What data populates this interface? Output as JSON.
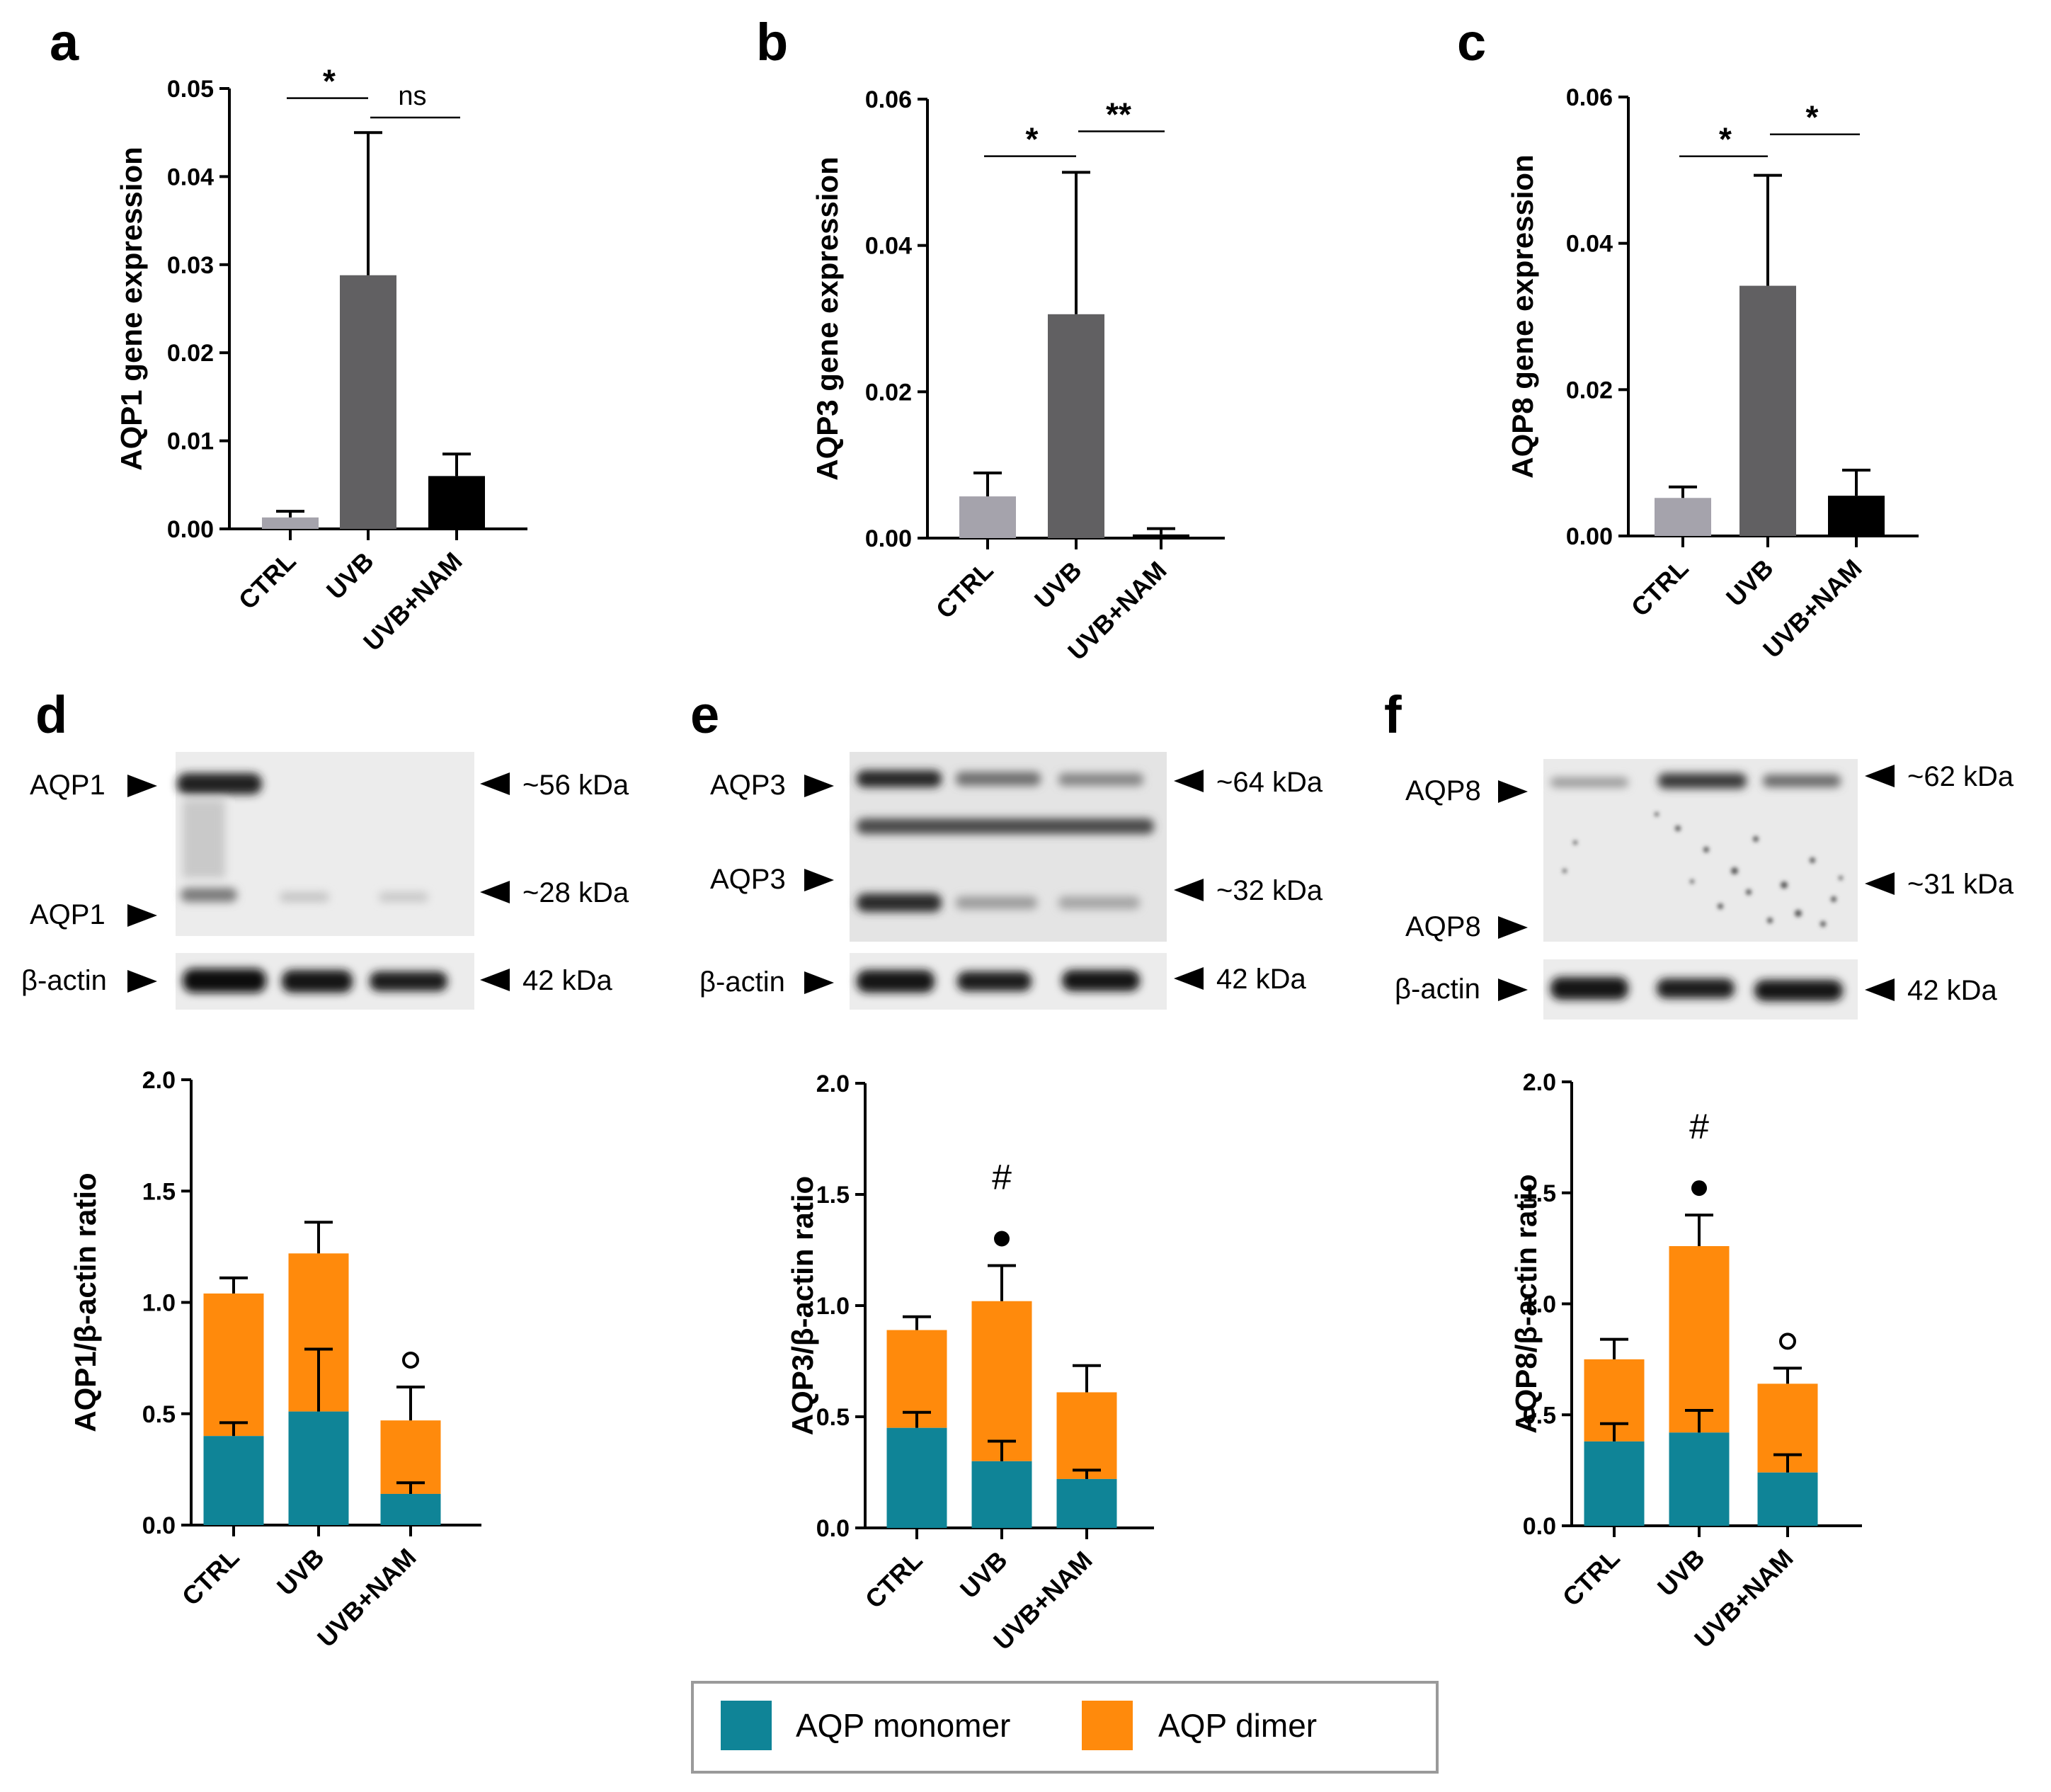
{
  "colors": {
    "ctrl_bar": "#a5a3ac",
    "uvb_bar": "#616062",
    "nam_bar": "#000000",
    "monomer": "#0f8497",
    "dimer": "#ff8a0c",
    "legend_border": "#9a9a9a"
  },
  "panels": {
    "a": {
      "letter": "a"
    },
    "b": {
      "letter": "b"
    },
    "c": {
      "letter": "c"
    },
    "d": {
      "letter": "d"
    },
    "e": {
      "letter": "e"
    },
    "f": {
      "letter": "f"
    }
  },
  "blots": {
    "d": {
      "band_labels": [
        "AQP1",
        "AQP1",
        "β-actin"
      ],
      "size_labels": [
        "~56 kDa",
        "~28 kDa",
        "42 kDa"
      ]
    },
    "e": {
      "band_labels": [
        "AQP3",
        "AQP3",
        "β-actin"
      ],
      "size_labels": [
        "~64 kDa",
        "~32 kDa",
        "42 kDa"
      ]
    },
    "f": {
      "band_labels": [
        "AQP8",
        "AQP8",
        "β-actin"
      ],
      "size_labels": [
        "~62 kDa",
        "~31 kDa",
        "42 kDa"
      ]
    }
  },
  "legend": {
    "monomer_label": "AQP monomer",
    "dimer_label": "AQP dimer"
  },
  "chart_data": [
    {
      "id": "a",
      "type": "bar",
      "categories": [
        "CTRL",
        "UVB",
        "UVB+NAM"
      ],
      "values": [
        0.0013,
        0.0288,
        0.006
      ],
      "errors": [
        0.0007,
        0.0162,
        0.0025
      ],
      "ylabel": "AQP1 gene expression",
      "ylim": [
        0,
        0.05
      ],
      "yticks": [
        "0.00",
        "0.01",
        "0.02",
        "0.03",
        "0.04",
        "0.05"
      ],
      "significance": [
        {
          "from": 0,
          "to": 1,
          "label": "*",
          "y": 0.0489
        },
        {
          "from": 1,
          "to": 2,
          "label": "ns",
          "y": 0.0467
        }
      ]
    },
    {
      "id": "b",
      "type": "bar",
      "categories": [
        "CTRL",
        "UVB",
        "UVB+NAM"
      ],
      "values": [
        0.0057,
        0.0306,
        0.0005
      ],
      "errors": [
        0.0032,
        0.0194,
        0.0008
      ],
      "ylabel": "AQP3 gene expression",
      "ylim": [
        0,
        0.06
      ],
      "yticks": [
        "0.00",
        "0.02",
        "0.04",
        "0.06"
      ],
      "significance": [
        {
          "from": 0,
          "to": 1,
          "label": "*",
          "y": 0.0522
        },
        {
          "from": 1,
          "to": 2,
          "label": "**",
          "y": 0.0556
        }
      ]
    },
    {
      "id": "c",
      "type": "bar",
      "categories": [
        "CTRL",
        "UVB",
        "UVB+NAM"
      ],
      "values": [
        0.0052,
        0.0342,
        0.0055
      ],
      "errors": [
        0.0015,
        0.0151,
        0.0035
      ],
      "ylabel": "AQP8 gene expression",
      "ylim": [
        0,
        0.06
      ],
      "yticks": [
        "0.00",
        "0.02",
        "0.04",
        "0.06"
      ],
      "significance": [
        {
          "from": 0,
          "to": 1,
          "label": "*",
          "y": 0.0519
        },
        {
          "from": 1,
          "to": 2,
          "label": "*",
          "y": 0.0549
        }
      ]
    },
    {
      "id": "d",
      "type": "stacked-bar",
      "categories": [
        "CTRL",
        "UVB",
        "UVB+NAM"
      ],
      "ylabel": "AQP1/β-actin ratio",
      "ylim": [
        0,
        2.0
      ],
      "yticks": [
        "0.0",
        "0.5",
        "1.0",
        "1.5",
        "2.0"
      ],
      "series": [
        {
          "name": "AQP monomer",
          "values": [
            0.4,
            0.51,
            0.14
          ],
          "errors": [
            0.06,
            0.28,
            0.05
          ]
        },
        {
          "name": "AQP dimer",
          "values": [
            0.64,
            0.71,
            0.33
          ],
          "errors": [
            0.07,
            0.14,
            0.15
          ]
        }
      ],
      "marks": [
        {
          "index": 2,
          "text": "°"
        }
      ]
    },
    {
      "id": "e",
      "type": "stacked-bar",
      "categories": [
        "CTRL",
        "UVB",
        "UVB+NAM"
      ],
      "ylabel": "AQP3/β-actin ratio",
      "ylim": [
        0,
        2.0
      ],
      "yticks": [
        "0.0",
        "0.5",
        "1.0",
        "1.5",
        "2.0"
      ],
      "series": [
        {
          "name": "AQP monomer",
          "values": [
            0.45,
            0.3,
            0.22
          ],
          "errors": [
            0.07,
            0.09,
            0.04
          ]
        },
        {
          "name": "AQP dimer",
          "values": [
            0.44,
            0.72,
            0.39
          ],
          "errors": [
            0.06,
            0.16,
            0.12
          ]
        }
      ],
      "marks": [
        {
          "index": 1,
          "text": "#"
        },
        {
          "index": 1,
          "text": "•"
        }
      ]
    },
    {
      "id": "f",
      "type": "stacked-bar",
      "categories": [
        "CTRL",
        "UVB",
        "UVB+NAM"
      ],
      "ylabel": "AQP8/β-actin ratio",
      "ylim": [
        0,
        2.0
      ],
      "yticks": [
        "0.0",
        "0.5",
        "1.0",
        "1.5",
        "2.0"
      ],
      "series": [
        {
          "name": "AQP monomer",
          "values": [
            0.38,
            0.42,
            0.24
          ],
          "errors": [
            0.08,
            0.1,
            0.08
          ]
        },
        {
          "name": "AQP dimer",
          "values": [
            0.37,
            0.84,
            0.4
          ],
          "errors": [
            0.09,
            0.14,
            0.07
          ]
        }
      ],
      "marks": [
        {
          "index": 2,
          "text": "°"
        },
        {
          "index": 1,
          "text": "#"
        },
        {
          "index": 1,
          "text": "•"
        }
      ]
    }
  ]
}
